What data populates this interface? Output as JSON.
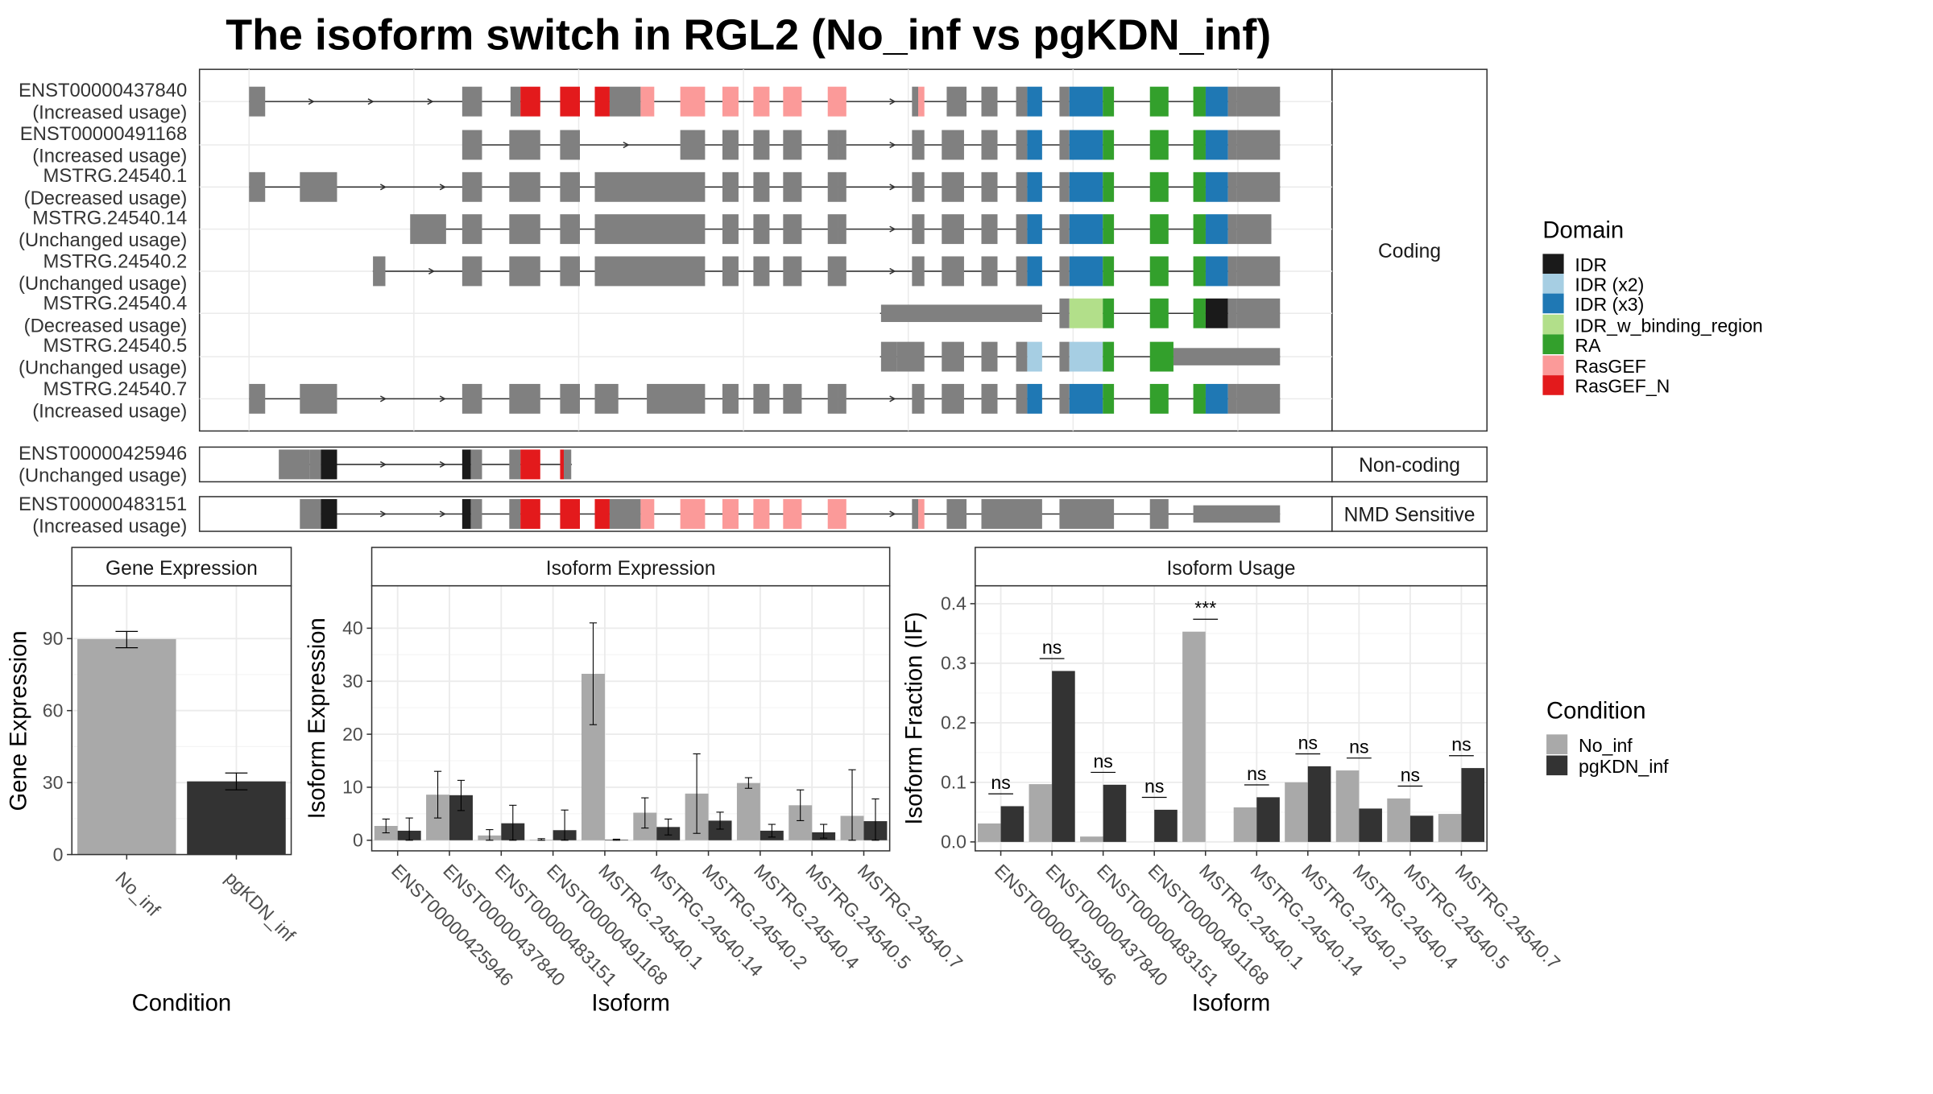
{
  "title": "The isoform switch in RGL2 (No_inf vs pgKDN_inf)",
  "colors": {
    "utr": "#808080",
    "cds": "#808080",
    "line": "#333333",
    "noinf": "#A9A9A9",
    "pgkdn": "#333333",
    "grid_major": "#EBEBEB",
    "grid_minor": "#F5F5F5",
    "strip_bg": "#FFFFFF",
    "border": "#333333",
    "domain_colors": {
      "IDR": "#1A1A1A",
      "IDR (x2)": "#A6CEE3",
      "IDR (x3)": "#1F78B4",
      "IDR_w_binding_region": "#B2DF8A",
      "RA": "#33A02C",
      "RasGEF": "#FB9A99",
      "RasGEF_N": "#E31A1C"
    }
  },
  "legend_domain": {
    "title": "Domain",
    "items": [
      "IDR",
      "IDR (x2)",
      "IDR (x3)",
      "IDR_w_binding_region",
      "RA",
      "RasGEF",
      "RasGEF_N"
    ]
  },
  "legend_condition": {
    "title": "Condition",
    "items": [
      "No_inf",
      "pgKDN_inf"
    ]
  },
  "transcript_panels": [
    {
      "label": "Coding",
      "transcripts": [
        {
          "id": "ENST00000437840",
          "usage": "(Increased usage)",
          "start": 0.0,
          "end": 1.0
        },
        {
          "id": "ENST00000491168",
          "usage": "(Increased usage)",
          "start": 0.225,
          "end": 1.0
        },
        {
          "id": "MSTRG.24540.1",
          "usage": "(Decreased usage)",
          "start": 0.0,
          "end": 1.0
        },
        {
          "id": "MSTRG.24540.14",
          "usage": "(Unchanged usage)",
          "start": 0.157,
          "end": 0.991
        },
        {
          "id": "MSTRG.24540.2",
          "usage": "(Unchanged usage)",
          "start": 0.12,
          "end": 1.0
        },
        {
          "id": "MSTRG.24540.4",
          "usage": "(Decreased usage)",
          "start": 0.612,
          "end": 1.0
        },
        {
          "id": "MSTRG.24540.5",
          "usage": "(Unchanged usage)",
          "start": 0.612,
          "end": 1.0
        },
        {
          "id": "MSTRG.24540.7",
          "usage": "(Increased usage)",
          "start": 0.0,
          "end": 1.0
        }
      ]
    },
    {
      "label": "Non-coding",
      "transcripts": [
        {
          "id": "ENST00000425946",
          "usage": "(Unchanged usage)",
          "start": 0.03,
          "end": 0.313
        }
      ]
    },
    {
      "label": "NMD Sensitive",
      "transcripts": [
        {
          "id": "ENST00000483151",
          "usage": "(Increased usage)",
          "start": 0.05,
          "end": 1.0
        }
      ]
    }
  ],
  "chart_data": [
    {
      "type": "bar",
      "title": "Gene Expression",
      "xlabel": "Condition",
      "ylabel": "Gene Expression",
      "categories": [
        "No_inf",
        "pgKDN_inf"
      ],
      "values": [
        89.8,
        30.5
      ],
      "error_low": [
        86.2,
        27.0
      ],
      "error_high": [
        93.0,
        34.0
      ],
      "ylim": [
        0,
        112
      ],
      "yticks": [
        0,
        30,
        60,
        90
      ]
    },
    {
      "type": "bar",
      "title": "Isoform Expression",
      "xlabel": "Isoform",
      "ylabel": "Isoform Expression",
      "categories": [
        "ENST00000425946",
        "ENST00000437840",
        "ENST00000483151",
        "ENST00000491168",
        "MSTRG.24540.1",
        "MSTRG.24540.14",
        "MSTRG.24540.2",
        "MSTRG.24540.4",
        "MSTRG.24540.5",
        "MSTRG.24540.7"
      ],
      "series": [
        {
          "name": "No_inf",
          "values": [
            2.7,
            8.6,
            0.9,
            0.1,
            31.4,
            5.2,
            8.8,
            10.8,
            6.6,
            4.6
          ],
          "error_low": [
            1.4,
            4.2,
            0.0,
            0.0,
            21.8,
            2.3,
            1.3,
            9.8,
            3.7,
            0.0
          ],
          "error_high": [
            4.0,
            13.0,
            2.0,
            0.3,
            41.0,
            8.0,
            16.3,
            11.8,
            9.5,
            13.3
          ]
        },
        {
          "name": "pgKDN_inf",
          "values": [
            1.8,
            8.5,
            3.2,
            1.9,
            0.1,
            2.5,
            3.7,
            1.8,
            1.5,
            3.6
          ],
          "error_low": [
            0.0,
            5.6,
            0.0,
            0.0,
            0.0,
            1.0,
            2.1,
            0.6,
            0.4,
            0.0
          ],
          "error_high": [
            4.2,
            11.3,
            6.6,
            5.7,
            0.2,
            4.0,
            5.3,
            3.0,
            3.0,
            7.8
          ]
        }
      ],
      "ylim": [
        -2,
        48
      ],
      "yticks": [
        0,
        10,
        20,
        30,
        40
      ]
    },
    {
      "type": "bar",
      "title": "Isoform Usage",
      "xlabel": "Isoform",
      "ylabel": "Isoform Fraction (IF)",
      "categories": [
        "ENST00000425946",
        "ENST00000437840",
        "ENST00000483151",
        "ENST00000491168",
        "MSTRG.24540.1",
        "MSTRG.24540.14",
        "MSTRG.24540.2",
        "MSTRG.24540.4",
        "MSTRG.24540.5",
        "MSTRG.24540.7"
      ],
      "series": [
        {
          "name": "No_inf",
          "values": [
            0.031,
            0.097,
            0.009,
            0.0,
            0.353,
            0.058,
            0.1,
            0.12,
            0.073,
            0.047
          ]
        },
        {
          "name": "pgKDN_inf",
          "values": [
            0.06,
            0.287,
            0.096,
            0.054,
            0.0,
            0.075,
            0.127,
            0.056,
            0.044,
            0.124
          ]
        }
      ],
      "significance": [
        "ns",
        "ns",
        "ns",
        "ns",
        "***",
        "ns",
        "ns",
        "ns",
        "ns",
        "ns"
      ],
      "ylim": [
        -0.015,
        0.43
      ],
      "yticks": [
        0.0,
        0.1,
        0.2,
        0.3,
        0.4
      ],
      "ytick_labels": [
        "0.0",
        "0.1",
        "0.2",
        "0.3",
        "0.4"
      ]
    }
  ]
}
